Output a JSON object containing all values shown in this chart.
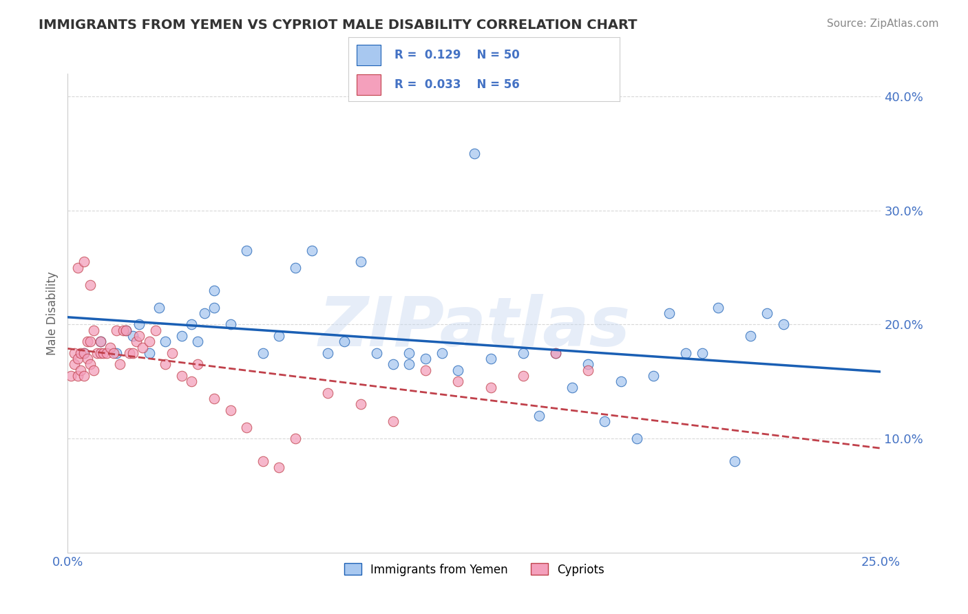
{
  "title": "IMMIGRANTS FROM YEMEN VS CYPRIOT MALE DISABILITY CORRELATION CHART",
  "source": "Source: ZipAtlas.com",
  "ylabel": "Male Disability",
  "xlim": [
    0.0,
    0.25
  ],
  "ylim": [
    0.0,
    0.42
  ],
  "ytick_labels": [
    "10.0%",
    "20.0%",
    "30.0%",
    "40.0%"
  ],
  "ytick_vals": [
    0.1,
    0.2,
    0.3,
    0.4
  ],
  "xtick_vals": [
    0.0,
    0.05,
    0.1,
    0.15,
    0.2,
    0.25
  ],
  "xtick_labels": [
    "0.0%",
    "",
    "",
    "",
    "",
    "25.0%"
  ],
  "legend_series": [
    {
      "label": "Immigrants from Yemen",
      "R": "0.129",
      "N": "50",
      "color": "#aec6e8"
    },
    {
      "label": "Cypriots",
      "R": "0.033",
      "N": "56",
      "color": "#f4b8c8"
    }
  ],
  "watermark": "ZIPatlas",
  "blue_scatter_x": [
    0.005,
    0.01,
    0.015,
    0.018,
    0.02,
    0.022,
    0.025,
    0.028,
    0.03,
    0.035,
    0.038,
    0.04,
    0.042,
    0.045,
    0.045,
    0.05,
    0.055,
    0.06,
    0.065,
    0.07,
    0.075,
    0.08,
    0.085,
    0.09,
    0.095,
    0.1,
    0.105,
    0.115,
    0.12,
    0.125,
    0.13,
    0.14,
    0.15,
    0.16,
    0.17,
    0.18,
    0.185,
    0.19,
    0.2,
    0.21,
    0.215,
    0.22,
    0.105,
    0.11,
    0.145,
    0.155,
    0.165,
    0.175,
    0.195,
    0.205
  ],
  "blue_scatter_y": [
    0.175,
    0.185,
    0.175,
    0.195,
    0.19,
    0.2,
    0.175,
    0.215,
    0.185,
    0.19,
    0.2,
    0.185,
    0.21,
    0.215,
    0.23,
    0.2,
    0.265,
    0.175,
    0.19,
    0.25,
    0.265,
    0.175,
    0.185,
    0.255,
    0.175,
    0.165,
    0.175,
    0.175,
    0.16,
    0.35,
    0.17,
    0.175,
    0.175,
    0.165,
    0.15,
    0.155,
    0.21,
    0.175,
    0.215,
    0.19,
    0.21,
    0.2,
    0.165,
    0.17,
    0.12,
    0.145,
    0.115,
    0.1,
    0.175,
    0.08
  ],
  "pink_scatter_x": [
    0.001,
    0.002,
    0.002,
    0.003,
    0.003,
    0.004,
    0.004,
    0.005,
    0.005,
    0.006,
    0.006,
    0.007,
    0.007,
    0.008,
    0.008,
    0.009,
    0.01,
    0.01,
    0.011,
    0.012,
    0.013,
    0.014,
    0.015,
    0.016,
    0.017,
    0.018,
    0.019,
    0.02,
    0.021,
    0.022,
    0.023,
    0.025,
    0.027,
    0.03,
    0.032,
    0.035,
    0.038,
    0.04,
    0.045,
    0.05,
    0.055,
    0.06,
    0.065,
    0.07,
    0.08,
    0.09,
    0.1,
    0.11,
    0.12,
    0.13,
    0.14,
    0.15,
    0.16,
    0.003,
    0.005,
    0.007
  ],
  "pink_scatter_y": [
    0.155,
    0.165,
    0.175,
    0.155,
    0.17,
    0.16,
    0.175,
    0.155,
    0.175,
    0.17,
    0.185,
    0.165,
    0.185,
    0.16,
    0.195,
    0.175,
    0.175,
    0.185,
    0.175,
    0.175,
    0.18,
    0.175,
    0.195,
    0.165,
    0.195,
    0.195,
    0.175,
    0.175,
    0.185,
    0.19,
    0.18,
    0.185,
    0.195,
    0.165,
    0.175,
    0.155,
    0.15,
    0.165,
    0.135,
    0.125,
    0.11,
    0.08,
    0.075,
    0.1,
    0.14,
    0.13,
    0.115,
    0.16,
    0.15,
    0.145,
    0.155,
    0.175,
    0.16,
    0.25,
    0.255,
    0.235
  ],
  "blue_line_color": "#1a5fb4",
  "pink_line_color": "#c0404a",
  "scatter_blue_color": "#a8c8f0",
  "scatter_pink_color": "#f4a0bc",
  "bg_color": "#ffffff",
  "grid_color": "#d8d8d8",
  "title_color": "#333333",
  "axis_color": "#4472c4"
}
